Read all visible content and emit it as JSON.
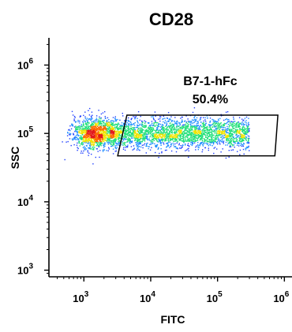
{
  "chart_data": {
    "type": "scatter",
    "title": "CD28",
    "xlabel": "FITC",
    "ylabel": "SSC",
    "xscale": "log",
    "yscale": "log",
    "xlim": [
      300,
      1300000
    ],
    "ylim": [
      800,
      2500000
    ],
    "xticks": [
      {
        "value": 1000,
        "base": "10",
        "exp": "3"
      },
      {
        "value": 10000,
        "base": "10",
        "exp": "4"
      },
      {
        "value": 100000,
        "base": "10",
        "exp": "5"
      },
      {
        "value": 1000000,
        "base": "10",
        "exp": "6"
      }
    ],
    "yticks": [
      {
        "value": 1000,
        "base": "10",
        "exp": "3"
      },
      {
        "value": 10000,
        "base": "10",
        "exp": "4"
      },
      {
        "value": 100000,
        "base": "10",
        "exp": "5"
      },
      {
        "value": 1000000,
        "base": "10",
        "exp": "6"
      }
    ],
    "gate": {
      "name": "B7-1-hFc",
      "percent": "50.4%",
      "vertices": [
        [
          4400,
          185000
        ],
        [
          800000,
          185000
        ],
        [
          720000,
          47000
        ],
        [
          3200,
          47000
        ]
      ]
    },
    "populations": [
      {
        "label": "dense",
        "x_center": 1500,
        "y_center": 100000,
        "x_spread_log": 0.17,
        "y_spread_log": 0.11,
        "count": 1300
      },
      {
        "label": "positive",
        "x_range": [
          2500,
          300000
        ],
        "y_center": 100000,
        "y_spread_log": 0.11,
        "count": 2600
      }
    ],
    "density_colors": [
      "#1f3fff",
      "#1c8dff",
      "#22e07a",
      "#f0e400",
      "#ff6a00",
      "#e31a1c"
    ],
    "grid": false,
    "legend": "none"
  }
}
